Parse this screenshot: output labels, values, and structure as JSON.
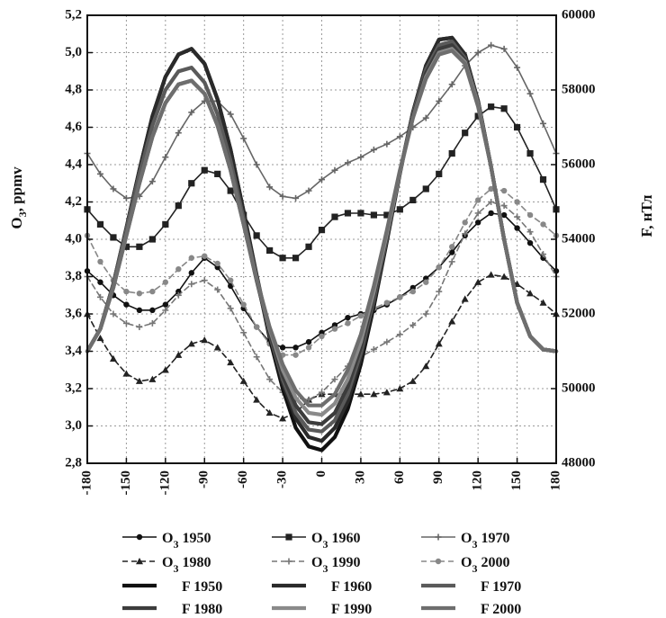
{
  "chart_data": {
    "type": "line",
    "x": [
      -180,
      -170,
      -160,
      -150,
      -140,
      -130,
      -120,
      -110,
      -100,
      -90,
      -80,
      -70,
      -60,
      -50,
      -40,
      -30,
      -20,
      -10,
      0,
      10,
      20,
      30,
      40,
      50,
      60,
      70,
      80,
      90,
      100,
      110,
      120,
      130,
      140,
      150,
      160,
      170,
      180
    ],
    "xticks": [
      "-180",
      "-150",
      "-120",
      "-90",
      "-60",
      "-30",
      "0",
      "30",
      "60",
      "90",
      "120",
      "150",
      "180"
    ],
    "xlim": [
      -180,
      180
    ],
    "ylabel_left": "O",
    "ylabel_left_sub": "3",
    "ylabel_left_suffix": ", ppmv",
    "ylim_left": [
      2.8,
      5.2
    ],
    "yticks_left": [
      "2,8",
      "3,0",
      "3,2",
      "3,4",
      "3,6",
      "3,8",
      "4,0",
      "4,2",
      "4,4",
      "4,6",
      "4,8",
      "5,0",
      "5,2"
    ],
    "ylabel_right": "F, нТл",
    "ylim_right": [
      48000,
      60000
    ],
    "yticks_right": [
      "48000",
      "50000",
      "52000",
      "54000",
      "56000",
      "58000",
      "60000"
    ],
    "grid": true,
    "legend_placement": "bottom",
    "series": [
      {
        "name": "O₃ 1950",
        "axis": "left",
        "style": "solid",
        "marker": "dot",
        "color": "#111111",
        "values": [
          3.83,
          3.77,
          3.7,
          3.65,
          3.62,
          3.62,
          3.65,
          3.72,
          3.82,
          3.9,
          3.85,
          3.75,
          3.63,
          3.53,
          3.45,
          3.42,
          3.42,
          3.45,
          3.5,
          3.54,
          3.58,
          3.6,
          3.62,
          3.65,
          3.69,
          3.74,
          3.79,
          3.85,
          3.93,
          4.02,
          4.09,
          4.14,
          4.13,
          4.06,
          3.98,
          3.9,
          3.83
        ]
      },
      {
        "name": "O₃ 1960",
        "axis": "left",
        "style": "solid",
        "marker": "square",
        "color": "#222222",
        "values": [
          4.16,
          4.08,
          4.01,
          3.96,
          3.96,
          4.0,
          4.08,
          4.18,
          4.3,
          4.37,
          4.35,
          4.26,
          4.13,
          4.02,
          3.94,
          3.9,
          3.9,
          3.96,
          4.05,
          4.12,
          4.14,
          4.14,
          4.13,
          4.13,
          4.16,
          4.21,
          4.27,
          4.35,
          4.46,
          4.57,
          4.66,
          4.71,
          4.7,
          4.6,
          4.46,
          4.32,
          4.16
        ]
      },
      {
        "name": "O₃ 1970",
        "axis": "left",
        "style": "solid",
        "marker": "plus",
        "color": "#666666",
        "values": [
          4.46,
          4.35,
          4.27,
          4.22,
          4.23,
          4.31,
          4.44,
          4.57,
          4.68,
          4.74,
          4.74,
          4.67,
          4.54,
          4.4,
          4.28,
          4.23,
          4.22,
          4.26,
          4.32,
          4.37,
          4.41,
          4.44,
          4.48,
          4.51,
          4.55,
          4.6,
          4.65,
          4.74,
          4.83,
          4.93,
          5.0,
          5.04,
          5.02,
          4.92,
          4.78,
          4.62,
          4.46
        ]
      },
      {
        "name": "O₃ 1980",
        "axis": "left",
        "style": "dashed",
        "marker": "triangle",
        "color": "#222222",
        "values": [
          3.6,
          3.47,
          3.36,
          3.28,
          3.24,
          3.25,
          3.3,
          3.38,
          3.44,
          3.46,
          3.42,
          3.34,
          3.24,
          3.14,
          3.07,
          3.04,
          3.07,
          3.14,
          3.17,
          3.17,
          3.17,
          3.17,
          3.17,
          3.18,
          3.2,
          3.24,
          3.32,
          3.44,
          3.56,
          3.68,
          3.77,
          3.81,
          3.8,
          3.76,
          3.71,
          3.66,
          3.6
        ]
      },
      {
        "name": "O₃ 1990",
        "axis": "left",
        "style": "dashed",
        "marker": "plus",
        "color": "#777777",
        "values": [
          3.8,
          3.69,
          3.6,
          3.55,
          3.53,
          3.55,
          3.62,
          3.7,
          3.76,
          3.78,
          3.73,
          3.63,
          3.5,
          3.37,
          3.25,
          3.18,
          3.15,
          3.14,
          3.18,
          3.25,
          3.32,
          3.37,
          3.41,
          3.45,
          3.49,
          3.54,
          3.6,
          3.72,
          3.88,
          4.03,
          4.14,
          4.2,
          4.18,
          4.12,
          4.04,
          3.92,
          3.8
        ]
      },
      {
        "name": "O₃ 2000",
        "axis": "left",
        "style": "dashed",
        "marker": "dot",
        "color": "#888888",
        "values": [
          4.02,
          3.88,
          3.78,
          3.72,
          3.71,
          3.72,
          3.77,
          3.84,
          3.9,
          3.91,
          3.87,
          3.78,
          3.65,
          3.53,
          3.44,
          3.38,
          3.38,
          3.42,
          3.48,
          3.52,
          3.55,
          3.59,
          3.63,
          3.66,
          3.69,
          3.72,
          3.77,
          3.85,
          3.96,
          4.09,
          4.21,
          4.27,
          4.26,
          4.2,
          4.13,
          4.08,
          4.02
        ]
      },
      {
        "name": "F 1950",
        "axis": "right",
        "style": "bold",
        "color": "#111111",
        "values": [
          51.0,
          51.6,
          52.8,
          54.3,
          55.85,
          57.3,
          58.35,
          58.95,
          59.1,
          58.7,
          57.75,
          56.4,
          54.75,
          53.0,
          51.35,
          50.0,
          48.95,
          48.45,
          48.35,
          48.7,
          49.45,
          50.65,
          52.2,
          53.95,
          55.75,
          57.4,
          58.65,
          59.35,
          59.4,
          58.95,
          57.7,
          55.95,
          54.0,
          52.3,
          51.4,
          51.05,
          51.0
        ]
      },
      {
        "name": "F 1960",
        "axis": "right",
        "style": "bold",
        "color": "#2a2a2a",
        "values": [
          51.0,
          51.6,
          52.8,
          54.3,
          55.85,
          57.3,
          58.35,
          58.95,
          59.1,
          58.7,
          57.75,
          56.4,
          54.75,
          53.05,
          51.45,
          50.15,
          49.2,
          48.7,
          48.6,
          48.95,
          49.65,
          50.8,
          52.3,
          54.0,
          55.8,
          57.4,
          58.65,
          59.35,
          59.4,
          58.95,
          57.7,
          55.95,
          54.0,
          52.3,
          51.4,
          51.05,
          51.0
        ]
      },
      {
        "name": "F 1970",
        "axis": "right",
        "style": "bold",
        "color": "#5a5a5a",
        "values": [
          51.0,
          51.6,
          52.8,
          54.25,
          55.75,
          57.05,
          58.0,
          58.5,
          58.6,
          58.2,
          57.35,
          56.1,
          54.55,
          52.95,
          51.45,
          50.25,
          49.35,
          48.9,
          48.85,
          49.15,
          49.85,
          50.95,
          52.4,
          54.05,
          55.8,
          57.35,
          58.55,
          59.2,
          59.3,
          58.85,
          57.65,
          55.95,
          54.0,
          52.3,
          51.4,
          51.05,
          51.0
        ]
      },
      {
        "name": "F 1980",
        "axis": "right",
        "style": "bold",
        "color": "#3c3c3c",
        "values": [
          51.0,
          51.6,
          52.7,
          54.1,
          55.5,
          56.75,
          57.65,
          58.15,
          58.25,
          57.9,
          57.05,
          55.85,
          54.4,
          52.9,
          51.5,
          50.35,
          49.55,
          49.1,
          49.05,
          49.35,
          50.05,
          51.1,
          52.5,
          54.1,
          55.8,
          57.3,
          58.45,
          59.1,
          59.2,
          58.8,
          57.6,
          55.95,
          54.0,
          52.3,
          51.4,
          51.05,
          51.0
        ]
      },
      {
        "name": "F 1990",
        "axis": "right",
        "style": "bold",
        "color": "#8a8a8a",
        "values": [
          51.0,
          51.6,
          52.7,
          54.1,
          55.5,
          56.75,
          57.65,
          58.15,
          58.25,
          57.9,
          57.05,
          55.85,
          54.4,
          52.95,
          51.6,
          50.5,
          49.75,
          49.35,
          49.3,
          49.6,
          50.25,
          51.25,
          52.6,
          54.15,
          55.8,
          57.25,
          58.35,
          59.0,
          59.1,
          58.75,
          57.6,
          55.95,
          54.0,
          52.3,
          51.4,
          51.05,
          51.0
        ]
      },
      {
        "name": "F 2000",
        "axis": "right",
        "style": "bold",
        "color": "#6e6e6e",
        "values": [
          51.0,
          51.6,
          52.7,
          54.1,
          55.5,
          56.75,
          57.65,
          58.15,
          58.25,
          57.9,
          57.05,
          55.85,
          54.4,
          52.95,
          51.65,
          50.65,
          49.95,
          49.55,
          49.55,
          49.85,
          50.5,
          51.45,
          52.75,
          54.25,
          55.85,
          57.25,
          58.3,
          58.95,
          59.05,
          58.7,
          57.55,
          55.95,
          54.0,
          52.3,
          51.4,
          51.05,
          51.0
        ]
      }
    ],
    "legend": [
      {
        "prefix": "O",
        "sub": "3",
        "year": "1950",
        "series": 0
      },
      {
        "prefix": "O",
        "sub": "3",
        "year": "1960",
        "series": 1
      },
      {
        "prefix": "O",
        "sub": "3",
        "year": "1970",
        "series": 2
      },
      {
        "prefix": "O",
        "sub": "3",
        "year": "1980",
        "series": 3
      },
      {
        "prefix": "O",
        "sub": "3",
        "year": "1990",
        "series": 4
      },
      {
        "prefix": "O",
        "sub": "3",
        "year": "2000",
        "series": 5
      },
      {
        "prefix": "F",
        "sub": "",
        "year": "1950",
        "series": 6
      },
      {
        "prefix": "F",
        "sub": "",
        "year": "1960",
        "series": 7
      },
      {
        "prefix": "F",
        "sub": "",
        "year": "1970",
        "series": 8
      },
      {
        "prefix": "F",
        "sub": "",
        "year": "1980",
        "series": 9
      },
      {
        "prefix": "F",
        "sub": "",
        "year": "1990",
        "series": 10
      },
      {
        "prefix": "F",
        "sub": "",
        "year": "2000",
        "series": 11
      }
    ]
  }
}
